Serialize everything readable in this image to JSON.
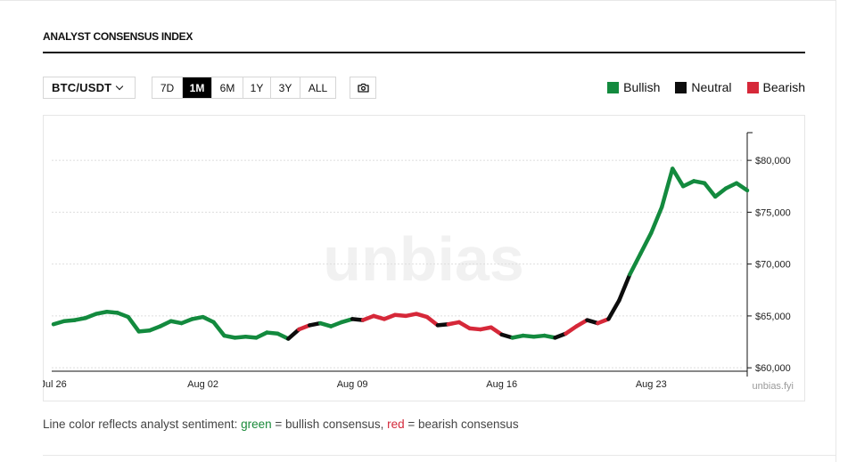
{
  "header": {
    "title": "ANALYST CONSENSUS INDEX"
  },
  "controls": {
    "pair": "BTC/USDT",
    "ranges": [
      "7D",
      "1M",
      "6M",
      "1Y",
      "3Y",
      "ALL"
    ],
    "active_range": "1M",
    "snapshot_icon": "camera-icon"
  },
  "legend": [
    {
      "label": "Bullish",
      "color": "#138a3e"
    },
    {
      "label": "Neutral",
      "color": "#0d0d0d"
    },
    {
      "label": "Bearish",
      "color": "#d62839"
    }
  ],
  "watermark": "unbias",
  "chart_data": {
    "type": "line",
    "x_axis": "date",
    "x_ticks": [
      "Jul 26",
      "Aug 02",
      "Aug 09",
      "Aug 16",
      "Aug 23"
    ],
    "y_ticks": [
      "$60,000",
      "$65,000",
      "$70,000",
      "$75,000",
      "$80,000"
    ],
    "ylim": [
      59500,
      82500
    ],
    "grid": "horizontal dotted",
    "credit": "unbias.fyi",
    "series": [
      {
        "points": [
          [
            "2024-07-26",
            64200
          ],
          [
            "2024-07-26T12",
            64500
          ],
          [
            "2024-07-27",
            64600
          ],
          [
            "2024-07-27T12",
            64800
          ],
          [
            "2024-07-28",
            65200
          ],
          [
            "2024-07-28T12",
            65400
          ],
          [
            "2024-07-29",
            65300
          ],
          [
            "2024-07-29T12",
            64900
          ],
          [
            "2024-07-30",
            63500
          ],
          [
            "2024-07-30T12",
            63600
          ],
          [
            "2024-07-31",
            64000
          ],
          [
            "2024-07-31T12",
            64500
          ],
          [
            "2024-08-01",
            64300
          ],
          [
            "2024-08-01T12",
            64700
          ],
          [
            "2024-08-02",
            64900
          ],
          [
            "2024-08-02T12",
            64400
          ],
          [
            "2024-08-03",
            63100
          ],
          [
            "2024-08-03T12",
            62900
          ],
          [
            "2024-08-04",
            63000
          ],
          [
            "2024-08-04T12",
            62900
          ],
          [
            "2024-08-05",
            63400
          ],
          [
            "2024-08-05T12",
            63300
          ],
          [
            "2024-08-06",
            62800
          ],
          [
            "2024-08-06T12",
            63700
          ],
          [
            "2024-08-07",
            64100
          ],
          [
            "2024-08-07T12",
            64300
          ],
          [
            "2024-08-08",
            64000
          ],
          [
            "2024-08-08T12",
            64400
          ],
          [
            "2024-08-09",
            64700
          ],
          [
            "2024-08-09T12",
            64600
          ],
          [
            "2024-08-10",
            65000
          ],
          [
            "2024-08-10T12",
            64700
          ],
          [
            "2024-08-11",
            65100
          ],
          [
            "2024-08-11T12",
            65000
          ],
          [
            "2024-08-12",
            65200
          ],
          [
            "2024-08-12T12",
            64900
          ],
          [
            "2024-08-13",
            64100
          ],
          [
            "2024-08-13T12",
            64200
          ],
          [
            "2024-08-14",
            64400
          ],
          [
            "2024-08-14T12",
            63800
          ],
          [
            "2024-08-15",
            63700
          ],
          [
            "2024-08-15T12",
            63900
          ],
          [
            "2024-08-16",
            63200
          ],
          [
            "2024-08-16T12",
            62900
          ],
          [
            "2024-08-17",
            63100
          ],
          [
            "2024-08-17T12",
            63000
          ],
          [
            "2024-08-18",
            63100
          ],
          [
            "2024-08-18T12",
            62900
          ],
          [
            "2024-08-19",
            63300
          ],
          [
            "2024-08-19T12",
            64000
          ],
          [
            "2024-08-20",
            64600
          ],
          [
            "2024-08-20T12",
            64300
          ],
          [
            "2024-08-21",
            64700
          ],
          [
            "2024-08-21T12",
            66500
          ],
          [
            "2024-08-22",
            69000
          ],
          [
            "2024-08-22T12",
            71000
          ],
          [
            "2024-08-23",
            73000
          ],
          [
            "2024-08-23T12",
            75500
          ],
          [
            "2024-08-24",
            79200
          ],
          [
            "2024-08-24T12",
            77500
          ],
          [
            "2024-08-25",
            78000
          ],
          [
            "2024-08-25T12",
            77800
          ],
          [
            "2024-08-26",
            76500
          ],
          [
            "2024-08-26T12",
            77300
          ],
          [
            "2024-08-27",
            77800
          ],
          [
            "2024-08-27T12",
            77100
          ]
        ],
        "sentiment": [
          "Bullish",
          "Bullish",
          "Bullish",
          "Bullish",
          "Bullish",
          "Bullish",
          "Bullish",
          "Bullish",
          "Bullish",
          "Bullish",
          "Bullish",
          "Bullish",
          "Bullish",
          "Bullish",
          "Bullish",
          "Bullish",
          "Bullish",
          "Bullish",
          "Bullish",
          "Bullish",
          "Bullish",
          "Bullish",
          "Neutral",
          "Bearish",
          "Neutral",
          "Bullish",
          "Bullish",
          "Bullish",
          "Neutral",
          "Bearish",
          "Bearish",
          "Bearish",
          "Bearish",
          "Bearish",
          "Bearish",
          "Bearish",
          "Neutral",
          "Bearish",
          "Bearish",
          "Bearish",
          "Bearish",
          "Bearish",
          "Neutral",
          "Bullish",
          "Bullish",
          "Bullish",
          "Bullish",
          "Neutral",
          "Bearish",
          "Bearish",
          "Neutral",
          "Bearish",
          "Neutral",
          "Neutral",
          "Bullish",
          "Bullish",
          "Bullish",
          "Bullish",
          "Bullish",
          "Bullish",
          "Bullish",
          "Bullish",
          "Bullish",
          "Bullish",
          "Bullish",
          "Bullish"
        ]
      }
    ]
  },
  "caption": {
    "prefix": "Line color reflects analyst sentiment: ",
    "green_word": "green",
    "mid": " = bullish consensus, ",
    "red_word": "red",
    "suffix": " = bearish consensus"
  }
}
